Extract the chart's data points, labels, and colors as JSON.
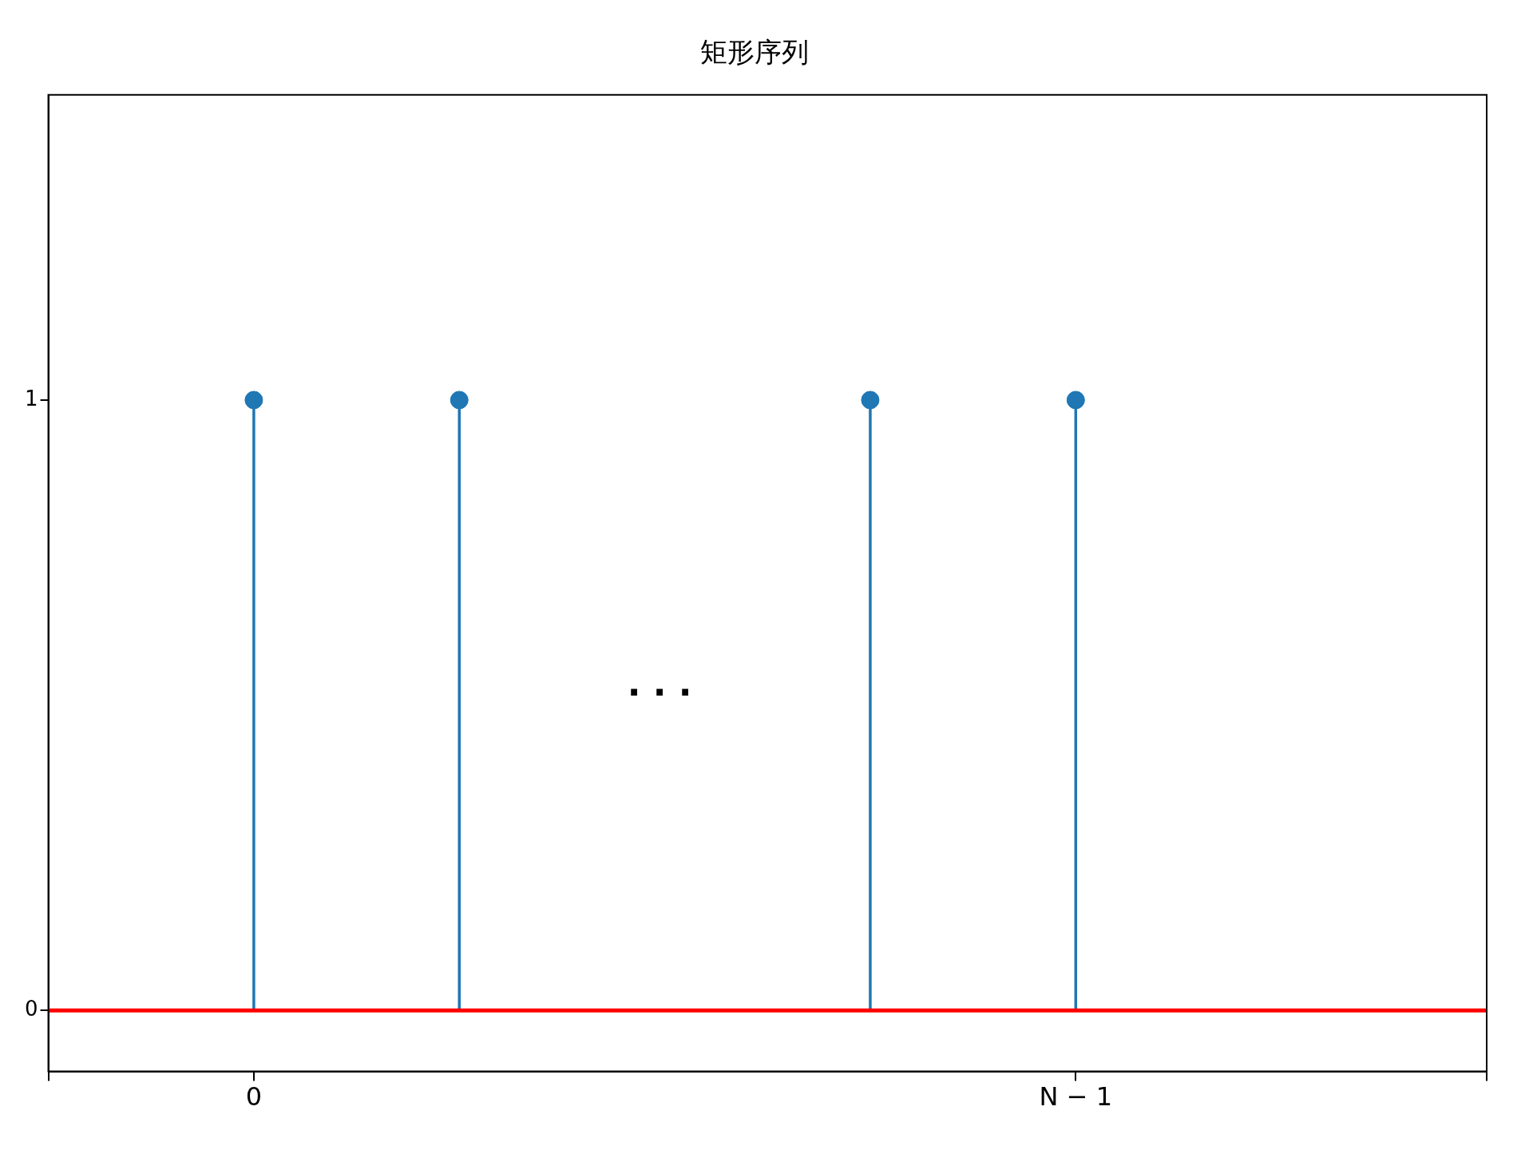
{
  "chart_data": {
    "type": "lollipop",
    "title": "矩形序列",
    "categories": [
      null,
      "0",
      null,
      null,
      null,
      "N − 1",
      null,
      null
    ],
    "series": [
      {
        "color": "#1f77b4",
        "values": [
          null,
          1,
          1,
          null,
          1,
          1,
          null,
          null
        ]
      }
    ],
    "ylim": [
      -0.1,
      1.5
    ],
    "yticks": [
      0,
      1
    ],
    "marker": "circle",
    "ref_lines": [
      {
        "axis": "y",
        "value": 0,
        "label": null,
        "color": "#ff0000"
      }
    ],
    "annotations": [
      "· · ·"
    ]
  }
}
